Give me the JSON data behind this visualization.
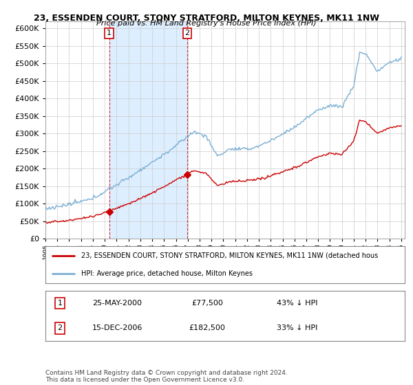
{
  "title": "23, ESSENDEN COURT, STONY STRATFORD, MILTON KEYNES, MK11 1NW",
  "subtitle": "Price paid vs. HM Land Registry's House Price Index (HPI)",
  "ylim": [
    0,
    620000
  ],
  "yticks": [
    0,
    50000,
    100000,
    150000,
    200000,
    250000,
    300000,
    350000,
    400000,
    450000,
    500000,
    550000,
    600000
  ],
  "background_color": "#ffffff",
  "plot_bg_color": "#ffffff",
  "grid_color": "#cccccc",
  "hpi_color": "#7aafd4",
  "price_color": "#cc0000",
  "fill_color": "#ddeeff",
  "transaction1_year": 2000.38,
  "transaction1_price": 77500,
  "transaction1_date": "25-MAY-2000",
  "transaction1_pct": "43% ↓ HPI",
  "transaction2_year": 2006.96,
  "transaction2_price": 182500,
  "transaction2_date": "15-DEC-2006",
  "transaction2_pct": "33% ↓ HPI",
  "legend_label_price": "23, ESSENDEN COURT, STONY STRATFORD, MILTON KEYNES, MK11 1NW (detached hous",
  "legend_label_hpi": "HPI: Average price, detached house, Milton Keynes",
  "footnote": "Contains HM Land Registry data © Crown copyright and database right 2024.\nThis data is licensed under the Open Government Licence v3.0.",
  "x_start_year": 1995,
  "x_end_year": 2025
}
